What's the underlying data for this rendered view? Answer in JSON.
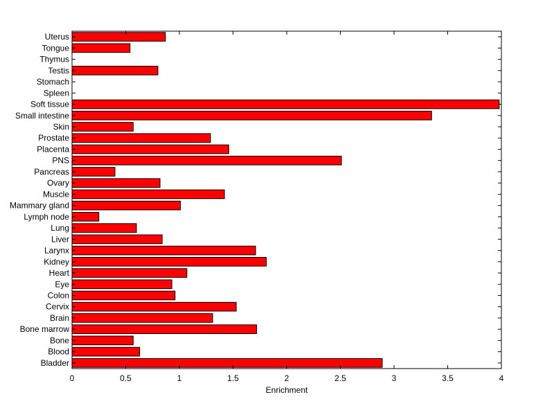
{
  "chart_data": {
    "type": "bar",
    "orientation": "horizontal",
    "title": "",
    "xlabel": "Enrichment",
    "ylabel": "",
    "xlim": [
      0,
      4
    ],
    "xticks": [
      0,
      0.5,
      1,
      1.5,
      2,
      2.5,
      3,
      3.5,
      4
    ],
    "xtick_labels": [
      "0",
      "0.5",
      "1",
      "1.5",
      "2",
      "2.5",
      "3",
      "3.5",
      "4"
    ],
    "grid": false,
    "bar_color": "#ff0000",
    "bar_edge_color": "#000000",
    "categories": [
      "Bladder",
      "Blood",
      "Bone",
      "Bone marrow",
      "Brain",
      "Cervix",
      "Colon",
      "Eye",
      "Heart",
      "Kidney",
      "Larynx",
      "Liver",
      "Lung",
      "Lymph node",
      "Mammary gland",
      "Muscle",
      "Ovary",
      "Pancreas",
      "PNS",
      "Placenta",
      "Prostate",
      "Skin",
      "Small intestine",
      "Soft tissue",
      "Spleen",
      "Stomach",
      "Testis",
      "Thymus",
      "Tongue",
      "Uterus"
    ],
    "values": [
      2.89,
      0.63,
      0.57,
      1.72,
      1.31,
      1.53,
      0.96,
      0.93,
      1.07,
      1.81,
      1.71,
      0.84,
      0.6,
      0.25,
      1.01,
      1.42,
      0.82,
      0.4,
      2.51,
      1.46,
      1.29,
      0.57,
      3.35,
      3.98,
      0,
      0,
      0.8,
      0,
      0.54,
      0.87
    ]
  }
}
